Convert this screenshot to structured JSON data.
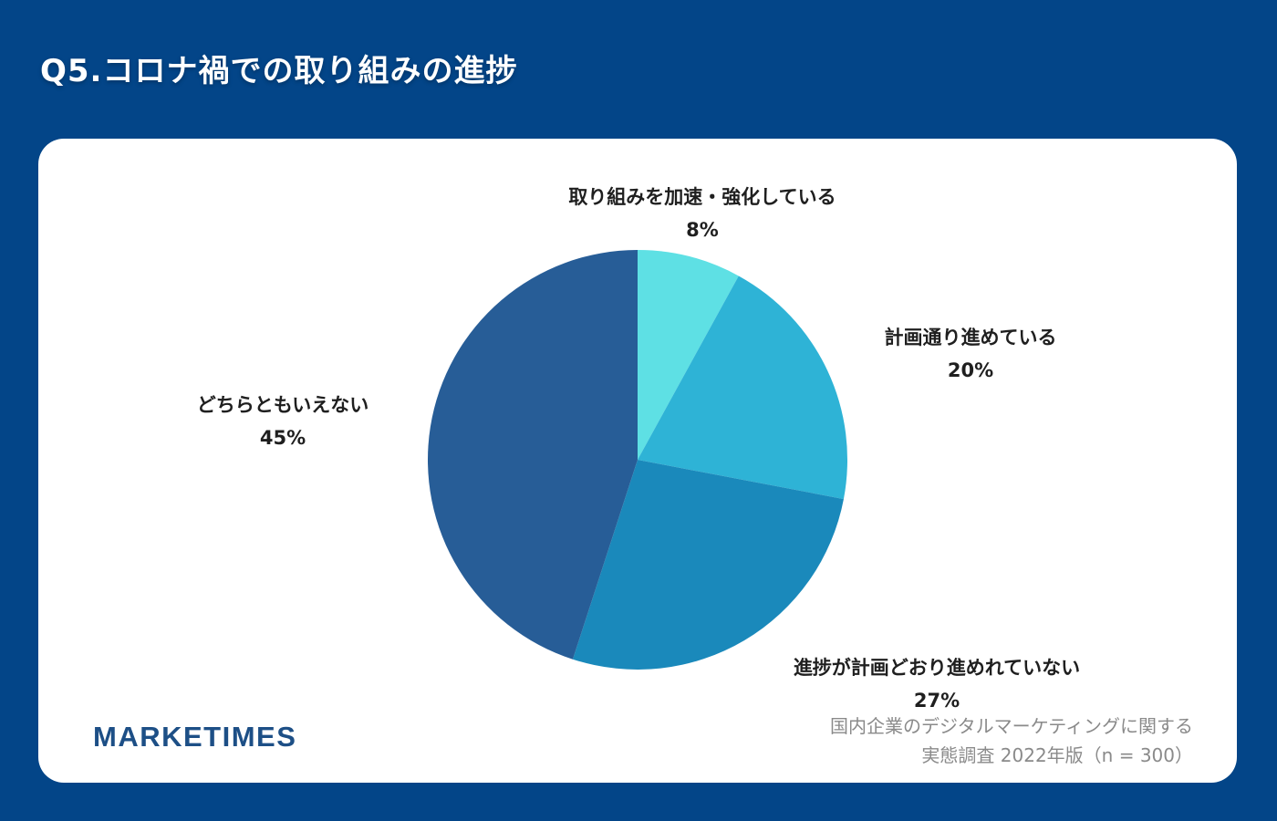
{
  "page": {
    "title": "Q5.コロナ禍での取り組みの進捗"
  },
  "branding": {
    "logo_text": "MARKETIMES"
  },
  "source": {
    "line1": "国内企業のデジタルマーケティングに関する",
    "line2": "実態調査 2022年版（n = 300）"
  },
  "colors": {
    "background": "#034588",
    "card": "#ffffff"
  },
  "chart_data": {
    "type": "pie",
    "start_angle_deg": 0,
    "direction": "clockwise",
    "slices": [
      {
        "label": "取り組みを加速・強化している",
        "value": 8,
        "value_label": "8%",
        "color": "#5ee0e4"
      },
      {
        "label": "計画通り進めている",
        "value": 20,
        "value_label": "20%",
        "color": "#2eb3d6"
      },
      {
        "label": "進捗が計画どおり進めれていない",
        "value": 27,
        "value_label": "27%",
        "color": "#1a89bb"
      },
      {
        "label": "どちらともいえない",
        "value": 45,
        "value_label": "45%",
        "color": "#275d97"
      }
    ]
  }
}
